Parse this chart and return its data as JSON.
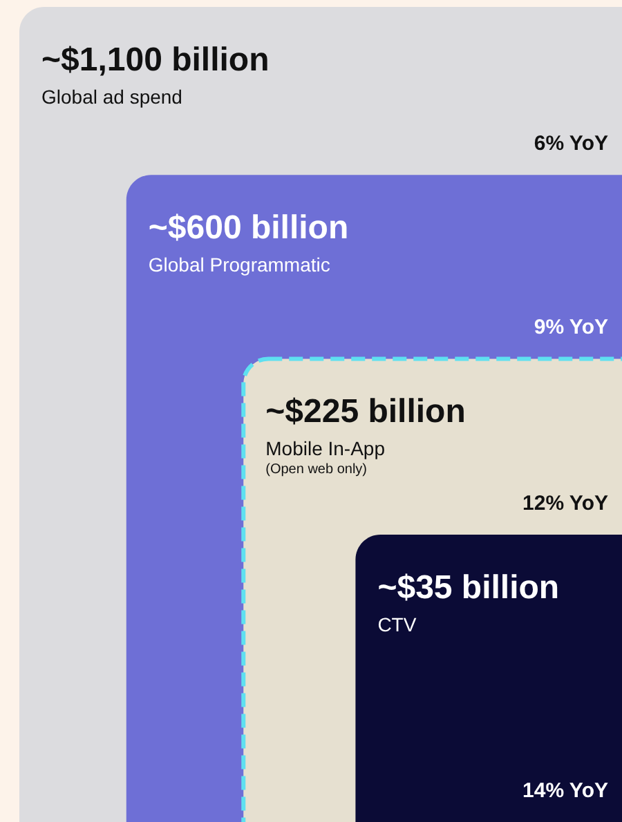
{
  "chart_data": {
    "type": "other",
    "categories": [
      "Global ad spend",
      "Global Programmatic",
      "Mobile In-App",
      "CTV"
    ],
    "values": [
      1100,
      600,
      225,
      35
    ],
    "value_labels": [
      "~$1,100 billion",
      "~$600 billion",
      "~$225 billion",
      "~$35 billion"
    ],
    "colors": [
      "#dcdcdf",
      "#6e6fd6",
      "#e6e0d0",
      "#0b0b36"
    ],
    "annotations": [
      {
        "text": "6% YoY",
        "x": "Global ad spend"
      },
      {
        "text": "9% YoY",
        "x": "Global Programmatic"
      },
      {
        "text": "12% YoY",
        "x": "Mobile In-App"
      },
      {
        "text": "14% YoY",
        "x": "CTV"
      },
      {
        "text": "(Open web only)",
        "x": "Mobile In-App"
      }
    ]
  }
}
